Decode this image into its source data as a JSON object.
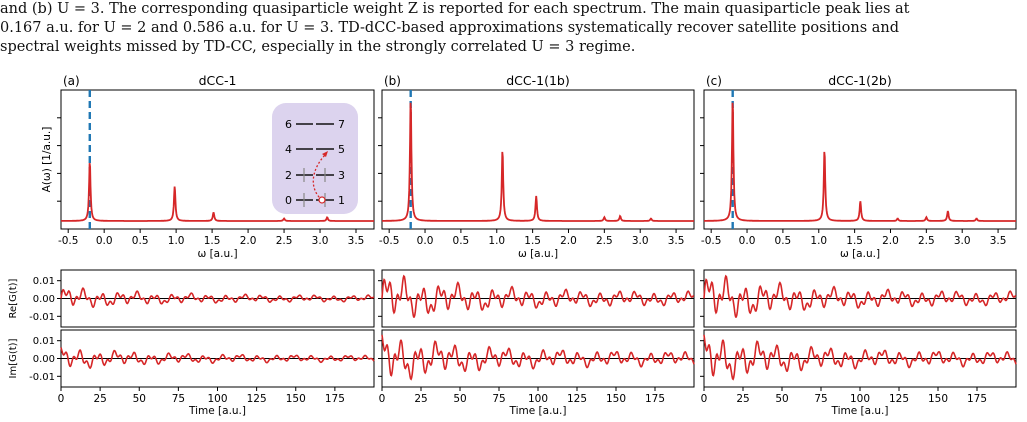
{
  "caption": {
    "lines": [
      "and (b) U = 3. The corresponding quasiparticle weight Z is reported for each spectrum. The main quasiparticle peak lies at",
      "0.167 a.u. for U = 2 and 0.586 a.u. for U = 3. TD-dCC-based approximations systematically recover satellite positions and",
      "spectral weights missed by TD-CC, especially in the strongly correlated U = 3 regime."
    ]
  },
  "colors": {
    "curve": "#d62728",
    "dashed": "#1f77b4",
    "inset_bg": "#dcd3ee",
    "axis": "#000000"
  },
  "chart_data": [
    {
      "type": "line",
      "panel": "(a)",
      "title": "dCC-1",
      "xlabel": "ω [a.u.]",
      "ylabel": "A(ω) [1/a.u.]",
      "xlim": [
        -0.6,
        3.75
      ],
      "ylim": [
        0,
        1
      ],
      "xticks": [
        "-0.5",
        "0.0",
        "0.5",
        "1.0",
        "1.5",
        "2.0",
        "2.5",
        "3.0",
        "3.5"
      ],
      "dashed_line_x": -0.2,
      "peaks": [
        {
          "x": -0.2,
          "height": 0.48
        },
        {
          "x": 0.98,
          "height": 0.28
        },
        {
          "x": 1.52,
          "height": 0.07
        },
        {
          "x": 2.5,
          "height": 0.02
        },
        {
          "x": 3.1,
          "height": 0.03
        }
      ],
      "inset": {
        "levels": [
          {
            "left": "6",
            "right": "7"
          },
          {
            "left": "4",
            "right": "5"
          },
          {
            "left": "2",
            "right": "3"
          },
          {
            "left": "0",
            "right": "1"
          }
        ]
      }
    },
    {
      "type": "line",
      "panel": "(b)",
      "title": "dCC-1(1b)",
      "xlabel": "ω [a.u.]",
      "xlim": [
        -0.6,
        3.75
      ],
      "ylim": [
        0,
        1
      ],
      "xticks": [
        "-0.5",
        "0.0",
        "0.5",
        "1.0",
        "1.5",
        "2.0",
        "2.5",
        "3.0",
        "3.5"
      ],
      "dashed_line_x": -0.2,
      "peaks": [
        {
          "x": -0.2,
          "height": 0.98
        },
        {
          "x": 1.08,
          "height": 0.57
        },
        {
          "x": 1.55,
          "height": 0.2
        },
        {
          "x": 2.5,
          "height": 0.03
        },
        {
          "x": 2.72,
          "height": 0.04
        },
        {
          "x": 3.15,
          "height": 0.02
        }
      ]
    },
    {
      "type": "line",
      "panel": "(c)",
      "title": "dCC-1(2b)",
      "xlabel": "ω [a.u.]",
      "xlim": [
        -0.6,
        3.75
      ],
      "ylim": [
        0,
        1
      ],
      "xticks": [
        "-0.5",
        "0.0",
        "0.5",
        "1.0",
        "1.5",
        "2.0",
        "2.5",
        "3.0",
        "3.5"
      ],
      "dashed_line_x": -0.2,
      "peaks": [
        {
          "x": -0.2,
          "height": 0.98
        },
        {
          "x": 1.08,
          "height": 0.57
        },
        {
          "x": 1.58,
          "height": 0.16
        },
        {
          "x": 2.1,
          "height": 0.02
        },
        {
          "x": 2.5,
          "height": 0.03
        },
        {
          "x": 2.8,
          "height": 0.08
        },
        {
          "x": 3.2,
          "height": 0.02
        }
      ]
    },
    {
      "type": "line",
      "role": "time-series",
      "ylabel_re": "Re[G(t)]",
      "ylabel_im": "Im[G(t)]",
      "xlabel": "Time [a.u.]",
      "xlim": [
        0,
        200
      ],
      "ylim": [
        -0.016,
        0.016
      ],
      "xticks": [
        "0",
        "25",
        "50",
        "75",
        "100",
        "125",
        "150",
        "175"
      ],
      "yticks": [
        "0.01",
        "0.00",
        "-0.01"
      ],
      "amplitude": {
        "a": 0.006,
        "b": 0.013,
        "c": 0.013
      }
    }
  ]
}
